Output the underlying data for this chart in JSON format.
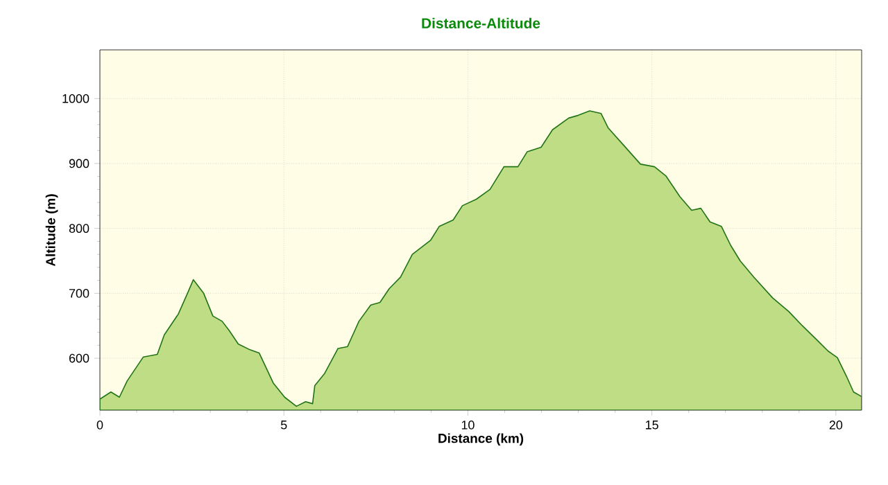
{
  "chart_data": {
    "type": "area",
    "title": "Distance-Altitude",
    "xlabel": "Distance (km)",
    "ylabel": "Altitude (m)",
    "xlim": [
      0,
      20.7
    ],
    "ylim": [
      520,
      1075
    ],
    "xticks": [
      0,
      5,
      10,
      15,
      20
    ],
    "yticks": [
      600,
      700,
      800,
      900,
      1000
    ],
    "grid": true,
    "series": [
      {
        "color": "#bedd84",
        "x": [
          0,
          0.3,
          0.53,
          0.74,
          1.18,
          1.56,
          1.75,
          2.13,
          2.38,
          2.54,
          2.82,
          3.07,
          3.32,
          3.51,
          3.76,
          4.08,
          4.33,
          4.71,
          5.02,
          5.34,
          5.59,
          5.78,
          5.84,
          6.1,
          6.47,
          6.73,
          7.04,
          7.36,
          7.61,
          7.86,
          8.17,
          8.49,
          8.99,
          9.22,
          9.6,
          9.85,
          10.23,
          10.6,
          10.98,
          11.36,
          11.61,
          11.99,
          12.3,
          12.74,
          12.99,
          13.31,
          13.62,
          13.81,
          14.25,
          14.69,
          15.07,
          15.38,
          15.76,
          16.08,
          16.33,
          16.58,
          16.89,
          17.14,
          17.4,
          17.77,
          18.28,
          18.72,
          19.09,
          19.47,
          19.79,
          20.04,
          20.29,
          20.48,
          20.7
        ],
        "values": [
          537,
          548,
          540,
          565,
          602,
          606,
          636,
          668,
          700,
          721,
          700,
          665,
          657,
          643,
          622,
          613,
          608,
          562,
          540,
          526,
          533,
          530,
          558,
          576,
          615,
          618,
          657,
          682,
          686,
          707,
          725,
          760,
          782,
          803,
          813,
          835,
          845,
          860,
          895,
          895,
          918,
          925,
          952,
          970,
          974,
          981,
          977,
          955,
          927,
          899,
          895,
          881,
          849,
          828,
          831,
          810,
          803,
          774,
          750,
          725,
          693,
          672,
          650,
          629,
          611,
          601,
          572,
          548,
          541
        ]
      }
    ]
  }
}
